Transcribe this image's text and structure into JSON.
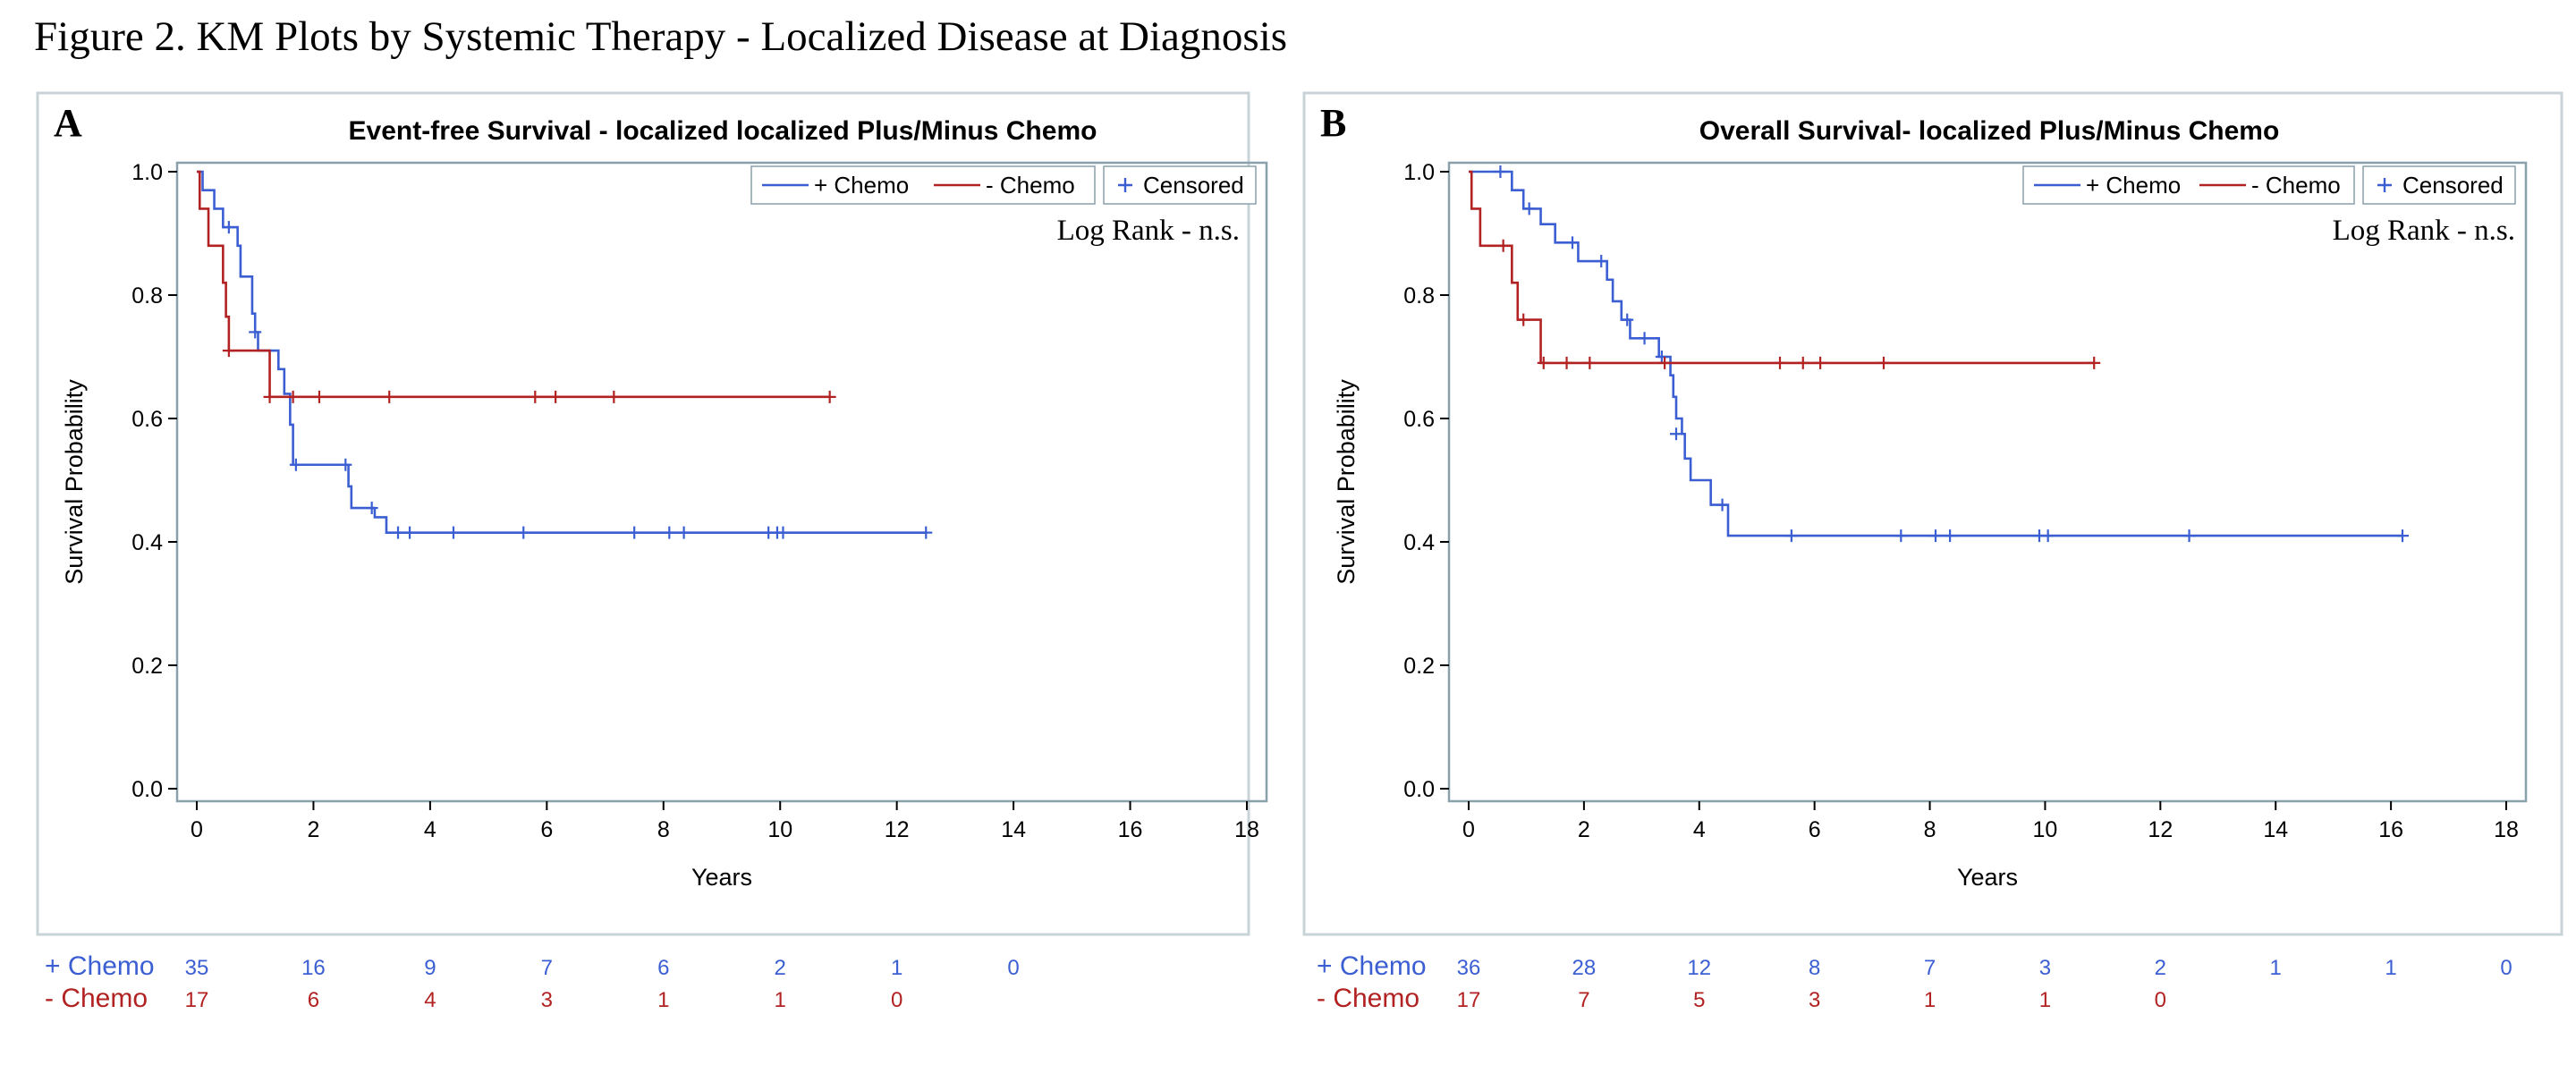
{
  "figure_title": "Figure 2. KM Plots by Systemic Therapy - Localized Disease at Diagnosis",
  "colors": {
    "chemo_plus": "#3b5fd3",
    "chemo_minus": "#b22222",
    "frame": "#8aa0ab"
  },
  "chart_data": [
    {
      "panel": "A",
      "type": "line",
      "step": true,
      "title": "Event-free Survival - localized localized Plus/Minus Chemo",
      "xlabel": "Years",
      "ylabel": "Survival Probability",
      "xlim": [
        0,
        18
      ],
      "ylim": [
        0,
        1
      ],
      "xticks": [
        0,
        2,
        4,
        6,
        8,
        10,
        12,
        14,
        16,
        18
      ],
      "xtick_labels": [
        "0",
        "2",
        "4",
        "6",
        "8",
        "10",
        "12",
        "14",
        "16",
        "18"
      ],
      "yticks": [
        0,
        0.2,
        0.4,
        0.6,
        0.8,
        1
      ],
      "ytick_labels": [
        "0.0",
        "0.2",
        "0.4",
        "0.6",
        "0.8",
        "1.0"
      ],
      "legend": [
        "+ Chemo",
        "- Chemo",
        "Censored"
      ],
      "legend_position": "top-right",
      "annotation": "Log Rank  - n.s.",
      "series": [
        {
          "name": "+ Chemo",
          "color": "#3b5fd3",
          "steps": [
            [
              0,
              1.0
            ],
            [
              0.1,
              0.97
            ],
            [
              0.3,
              0.94
            ],
            [
              0.45,
              0.91
            ],
            [
              0.7,
              0.88
            ],
            [
              0.75,
              0.83
            ],
            [
              0.95,
              0.77
            ],
            [
              1.0,
              0.74
            ],
            [
              1.05,
              0.71
            ],
            [
              1.4,
              0.68
            ],
            [
              1.5,
              0.64
            ],
            [
              1.6,
              0.59
            ],
            [
              1.65,
              0.525
            ],
            [
              2.6,
              0.49
            ],
            [
              2.65,
              0.455
            ],
            [
              3.05,
              0.44
            ],
            [
              3.25,
              0.415
            ],
            [
              12.5,
              0.415
            ]
          ],
          "censored": [
            [
              0.55,
              0.91
            ],
            [
              1.0,
              0.74
            ],
            [
              1.7,
              0.525
            ],
            [
              2.55,
              0.525
            ],
            [
              3.0,
              0.455
            ],
            [
              3.45,
              0.415
            ],
            [
              3.65,
              0.415
            ],
            [
              4.4,
              0.415
            ],
            [
              5.6,
              0.415
            ],
            [
              7.5,
              0.415
            ],
            [
              8.1,
              0.415
            ],
            [
              8.35,
              0.415
            ],
            [
              9.8,
              0.415
            ],
            [
              9.95,
              0.415
            ],
            [
              10.05,
              0.415
            ],
            [
              12.5,
              0.415
            ]
          ]
        },
        {
          "name": "- Chemo",
          "color": "#b22222",
          "steps": [
            [
              0,
              1.0
            ],
            [
              0.05,
              0.94
            ],
            [
              0.2,
              0.88
            ],
            [
              0.45,
              0.82
            ],
            [
              0.5,
              0.765
            ],
            [
              0.55,
              0.71
            ],
            [
              1.25,
              0.635
            ],
            [
              10.85,
              0.635
            ]
          ],
          "censored": [
            [
              0.55,
              0.71
            ],
            [
              1.25,
              0.635
            ],
            [
              1.65,
              0.635
            ],
            [
              2.1,
              0.635
            ],
            [
              3.3,
              0.635
            ],
            [
              5.8,
              0.635
            ],
            [
              6.15,
              0.635
            ],
            [
              7.15,
              0.635
            ],
            [
              10.85,
              0.635
            ]
          ]
        }
      ],
      "risk_table": {
        "times": [
          0,
          2,
          4,
          6,
          8,
          10,
          12,
          14
        ],
        "rows": [
          {
            "label": "+ Chemo",
            "color": "#3b5fd3",
            "values": [
              "35",
              "16",
              "9",
              "7",
              "6",
              "2",
              "1",
              "0"
            ]
          },
          {
            "label": "- Chemo",
            "color": "#b22222",
            "values": [
              "17",
              "6",
              "4",
              "3",
              "1",
              "1",
              "0",
              ""
            ]
          }
        ]
      }
    },
    {
      "panel": "B",
      "type": "line",
      "step": true,
      "title": "Overall Survival- localized Plus/Minus Chemo",
      "xlabel": "Years",
      "ylabel": "Survival Probability",
      "xlim": [
        0,
        18
      ],
      "ylim": [
        0,
        1
      ],
      "xticks": [
        0,
        2,
        4,
        6,
        8,
        10,
        12,
        14,
        16,
        18
      ],
      "xtick_labels": [
        "0",
        "2",
        "4",
        "6",
        "8",
        "10",
        "12",
        "14",
        "16",
        "18"
      ],
      "yticks": [
        0,
        0.2,
        0.4,
        0.6,
        0.8,
        1
      ],
      "ytick_labels": [
        "0.0",
        "0.2",
        "0.4",
        "0.6",
        "0.8",
        "1.0"
      ],
      "legend": [
        "+ Chemo",
        "- Chemo",
        "Censored"
      ],
      "legend_position": "top-right",
      "annotation": "Log Rank  - n.s.",
      "series": [
        {
          "name": "+ Chemo",
          "color": "#3b5fd3",
          "steps": [
            [
              0,
              1.0
            ],
            [
              0.75,
              0.97
            ],
            [
              0.95,
              0.94
            ],
            [
              1.25,
              0.915
            ],
            [
              1.5,
              0.885
            ],
            [
              1.9,
              0.855
            ],
            [
              2.4,
              0.825
            ],
            [
              2.5,
              0.79
            ],
            [
              2.65,
              0.76
            ],
            [
              2.8,
              0.73
            ],
            [
              3.3,
              0.7
            ],
            [
              3.5,
              0.67
            ],
            [
              3.55,
              0.635
            ],
            [
              3.6,
              0.6
            ],
            [
              3.7,
              0.575
            ],
            [
              3.75,
              0.535
            ],
            [
              3.85,
              0.5
            ],
            [
              4.2,
              0.46
            ],
            [
              4.5,
              0.41
            ],
            [
              16.2,
              0.41
            ]
          ],
          "censored": [
            [
              0.55,
              1.0
            ],
            [
              1.05,
              0.94
            ],
            [
              1.8,
              0.885
            ],
            [
              2.3,
              0.855
            ],
            [
              2.75,
              0.76
            ],
            [
              3.05,
              0.73
            ],
            [
              3.35,
              0.7
            ],
            [
              3.6,
              0.575
            ],
            [
              4.4,
              0.46
            ],
            [
              5.6,
              0.41
            ],
            [
              7.5,
              0.41
            ],
            [
              8.1,
              0.41
            ],
            [
              8.35,
              0.41
            ],
            [
              9.9,
              0.41
            ],
            [
              10.05,
              0.41
            ],
            [
              12.5,
              0.41
            ],
            [
              16.2,
              0.41
            ]
          ]
        },
        {
          "name": "- Chemo",
          "color": "#b22222",
          "steps": [
            [
              0,
              1.0
            ],
            [
              0.05,
              0.94
            ],
            [
              0.2,
              0.88
            ],
            [
              0.75,
              0.82
            ],
            [
              0.85,
              0.76
            ],
            [
              1.25,
              0.69
            ],
            [
              10.85,
              0.69
            ]
          ],
          "censored": [
            [
              0.6,
              0.88
            ],
            [
              0.95,
              0.76
            ],
            [
              1.3,
              0.69
            ],
            [
              1.7,
              0.69
            ],
            [
              2.1,
              0.69
            ],
            [
              3.4,
              0.69
            ],
            [
              5.4,
              0.69
            ],
            [
              5.8,
              0.69
            ],
            [
              6.1,
              0.69
            ],
            [
              7.2,
              0.69
            ],
            [
              10.85,
              0.69
            ]
          ]
        }
      ],
      "risk_table": {
        "times": [
          0,
          2,
          4,
          6,
          8,
          10,
          12,
          14,
          16,
          18
        ],
        "rows": [
          {
            "label": "+ Chemo",
            "color": "#3b5fd3",
            "values": [
              "36",
              "28",
              "12",
              "8",
              "7",
              "3",
              "2",
              "1",
              "1",
              "0"
            ]
          },
          {
            "label": "- Chemo",
            "color": "#b22222",
            "values": [
              "17",
              "7",
              "5",
              "3",
              "1",
              "1",
              "0",
              "",
              "",
              ""
            ]
          }
        ]
      }
    }
  ]
}
